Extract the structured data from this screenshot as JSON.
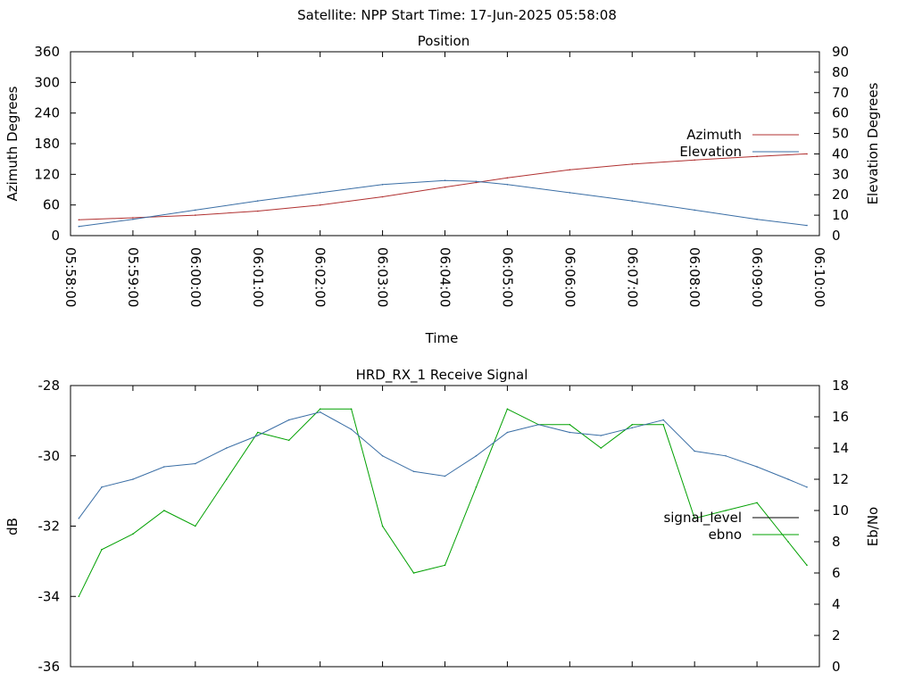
{
  "header": {
    "title": "Satellite: NPP    Start Time: 17-Jun-2025 05:58:08"
  },
  "chart_data": [
    {
      "type": "line",
      "title": "Position",
      "xlabel": "Time",
      "ylabel": "Azimuth Degrees",
      "y2label": "Elevation Degrees",
      "x_ticks": [
        "05:58:00",
        "05:59:00",
        "06:00:00",
        "06:01:00",
        "06:02:00",
        "06:03:00",
        "06:04:00",
        "06:05:00",
        "06:06:00",
        "06:07:00",
        "06:08:00",
        "06:09:00",
        "06:10:00"
      ],
      "xlim": [
        "05:58:00",
        "06:10:00"
      ],
      "ylim": [
        0,
        360
      ],
      "y_ticks": [
        "0",
        "60",
        "120",
        "180",
        "240",
        "300",
        "360"
      ],
      "y2lim": [
        0,
        90
      ],
      "y2_ticks": [
        "0",
        "10",
        "20",
        "30",
        "40",
        "50",
        "60",
        "70",
        "80",
        "90"
      ],
      "legend": "right",
      "series": [
        {
          "name": "Azimuth",
          "axis": "y",
          "color": "#b03030",
          "x": [
            "05:58:08",
            "05:59:00",
            "06:00:00",
            "06:01:00",
            "06:02:00",
            "06:03:00",
            "06:04:00",
            "06:04:30",
            "06:05:00",
            "06:06:00",
            "06:07:00",
            "06:08:00",
            "06:09:00",
            "06:09:48"
          ],
          "values": [
            31,
            35,
            40,
            48,
            60,
            76,
            95,
            104,
            113,
            129,
            140,
            148,
            155,
            160
          ]
        },
        {
          "name": "Elevation",
          "axis": "y2",
          "color": "#3a6ea5",
          "x": [
            "05:58:08",
            "05:59:00",
            "06:00:00",
            "06:01:00",
            "06:02:00",
            "06:03:00",
            "06:04:00",
            "06:04:30",
            "06:05:00",
            "06:06:00",
            "06:07:00",
            "06:08:00",
            "06:09:00",
            "06:09:48"
          ],
          "values": [
            4.5,
            8,
            12.5,
            17,
            21,
            25,
            27,
            26.5,
            25,
            21,
            17,
            12.5,
            8,
            5
          ]
        }
      ]
    },
    {
      "type": "line",
      "title": "HRD_RX_1 Receive Signal",
      "xlabel": "",
      "ylabel": "dB",
      "y2label": "Eb/No",
      "xlim": [
        "05:58:00",
        "06:10:00"
      ],
      "ylim": [
        -36,
        -28
      ],
      "y_ticks": [
        "-36",
        "-34",
        "-32",
        "-30",
        "-28"
      ],
      "y2lim": [
        0,
        18
      ],
      "y2_ticks": [
        "0",
        "2",
        "4",
        "6",
        "8",
        "10",
        "12",
        "14",
        "16",
        "18"
      ],
      "legend": "right",
      "series": [
        {
          "name": "signal_level",
          "axis": "y",
          "color": "#000000",
          "x": [],
          "values": []
        },
        {
          "name": "ebno",
          "axis": "y2",
          "color": "#00a000",
          "x": [
            "05:58:08",
            "05:58:30",
            "05:59:00",
            "05:59:30",
            "06:00:00",
            "06:00:30",
            "06:01:00",
            "06:01:30",
            "06:02:00",
            "06:02:30",
            "06:03:00",
            "06:03:30",
            "06:04:00",
            "06:04:30",
            "06:05:00",
            "06:05:30",
            "06:06:00",
            "06:06:30",
            "06:07:00",
            "06:07:30",
            "06:08:00",
            "06:08:30",
            "06:09:00",
            "06:09:30",
            "06:09:48"
          ],
          "values": [
            4.5,
            7.5,
            8.5,
            10.0,
            9.0,
            12.0,
            15.0,
            14.5,
            16.5,
            16.5,
            9.0,
            6.0,
            6.5,
            11.5,
            16.5,
            15.5,
            15.5,
            14.0,
            15.5,
            15.5,
            9.5,
            10.0,
            10.5,
            8.0,
            6.5
          ]
        },
        {
          "name": "",
          "axis": "y2",
          "color": "#3a6ea5",
          "x": [
            "05:58:08",
            "05:58:30",
            "05:59:00",
            "05:59:30",
            "06:00:00",
            "06:00:30",
            "06:01:00",
            "06:01:30",
            "06:02:00",
            "06:02:30",
            "06:03:00",
            "06:03:30",
            "06:04:00",
            "06:04:30",
            "06:05:00",
            "06:05:30",
            "06:06:00",
            "06:06:30",
            "06:07:00",
            "06:07:30",
            "06:08:00",
            "06:08:30",
            "06:09:00",
            "06:09:30",
            "06:09:48"
          ],
          "values": [
            9.5,
            11.5,
            12.0,
            12.8,
            13.0,
            14.0,
            14.8,
            15.8,
            16.3,
            15.2,
            13.5,
            12.5,
            12.2,
            13.5,
            15.0,
            15.5,
            15.0,
            14.8,
            15.3,
            15.8,
            13.8,
            13.5,
            12.8,
            12.0,
            11.5
          ]
        }
      ]
    }
  ]
}
